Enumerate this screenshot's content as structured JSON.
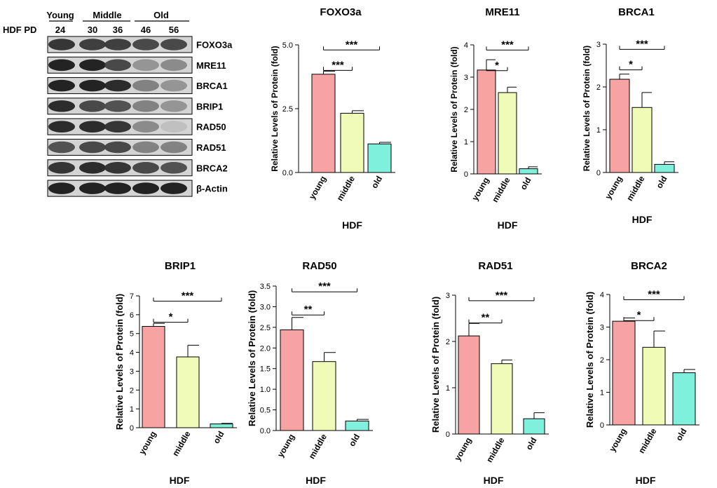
{
  "western_blot": {
    "sample_label": "HDF PD",
    "groups": [
      {
        "label": "Young",
        "lanes": [
          "24"
        ]
      },
      {
        "label": "Middle",
        "lanes": [
          "30",
          "36"
        ]
      },
      {
        "label": "Old",
        "lanes": [
          "46",
          "56"
        ]
      }
    ],
    "proteins": [
      "FOXO3a",
      "MRE11",
      "BRCA1",
      "BRIP1",
      "RAD50",
      "RAD51",
      "BRCA2",
      "β-Actin"
    ],
    "band_intensity": [
      [
        0.85,
        0.8,
        0.8,
        0.75,
        0.75
      ],
      [
        0.95,
        0.95,
        0.75,
        0.35,
        0.4
      ],
      [
        0.95,
        0.95,
        0.9,
        0.45,
        0.35
      ],
      [
        0.9,
        0.75,
        0.7,
        0.45,
        0.35
      ],
      [
        0.9,
        0.9,
        0.85,
        0.4,
        0.12
      ],
      [
        0.7,
        0.75,
        0.75,
        0.45,
        0.45
      ],
      [
        0.85,
        0.9,
        0.85,
        0.75,
        0.7
      ],
      [
        0.95,
        0.95,
        0.95,
        0.95,
        0.95
      ]
    ]
  },
  "chart_data": [
    {
      "type": "bar",
      "title": "FOXO3a",
      "xlabel": "HDF",
      "ylabel": "Relative Levels of Protein (fold)",
      "categories": [
        "young",
        "middle",
        "old"
      ],
      "values": [
        3.85,
        2.32,
        1.12
      ],
      "errors": [
        0.12,
        0.1,
        0.06
      ],
      "ylim": [
        0,
        5
      ],
      "yticks": [
        "0.0",
        "2.5",
        "5.0"
      ],
      "significance": [
        {
          "from": 0,
          "to": 1,
          "label": "***"
        },
        {
          "from": 0,
          "to": 2,
          "label": "***"
        }
      ]
    },
    {
      "type": "bar",
      "title": "MRE11",
      "xlabel": "HDF",
      "ylabel": "Relative Levels of Protein (fold)",
      "categories": [
        "young",
        "middle",
        "old"
      ],
      "values": [
        3.22,
        2.52,
        0.16
      ],
      "errors": [
        0.32,
        0.17,
        0.06
      ],
      "ylim": [
        0,
        4
      ],
      "yticks": [
        "0",
        "1",
        "2",
        "3",
        "4"
      ],
      "significance": [
        {
          "from": 0,
          "to": 1,
          "label": "*"
        },
        {
          "from": 0,
          "to": 2,
          "label": "***"
        }
      ]
    },
    {
      "type": "bar",
      "title": "BRCA1",
      "xlabel": "HDF",
      "ylabel": "Relative Levels of Protein (fold)",
      "categories": [
        "young",
        "middle",
        "old"
      ],
      "values": [
        2.18,
        1.52,
        0.19
      ],
      "errors": [
        0.12,
        0.35,
        0.06
      ],
      "ylim": [
        0,
        3
      ],
      "yticks": [
        "0",
        "1",
        "2",
        "3"
      ],
      "significance": [
        {
          "from": 0,
          "to": 1,
          "label": "*"
        },
        {
          "from": 0,
          "to": 2,
          "label": "***"
        }
      ]
    },
    {
      "type": "bar",
      "title": "BRIP1",
      "xlabel": "HDF",
      "ylabel": "Relative Levels of Protein (fold)",
      "categories": [
        "young",
        "middle",
        "old"
      ],
      "values": [
        5.38,
        3.76,
        0.2
      ],
      "errors": [
        0.16,
        0.62,
        0.03
      ],
      "ylim": [
        0,
        7
      ],
      "yticks": [
        "0",
        "1",
        "2",
        "3",
        "4",
        "5",
        "6",
        "7"
      ],
      "significance": [
        {
          "from": 0,
          "to": 1,
          "label": "*"
        },
        {
          "from": 0,
          "to": 2,
          "label": "***"
        }
      ]
    },
    {
      "type": "bar",
      "title": "RAD50",
      "xlabel": "HDF",
      "ylabel": "Relative Levels of Protein (fold)",
      "categories": [
        "young",
        "middle",
        "old"
      ],
      "values": [
        2.44,
        1.67,
        0.23
      ],
      "errors": [
        0.3,
        0.22,
        0.04
      ],
      "ylim": [
        0,
        3.5
      ],
      "yticks": [
        "0.0",
        "0.5",
        "1.0",
        "1.5",
        "2.0",
        "2.5",
        "3.0",
        "3.5"
      ],
      "significance": [
        {
          "from": 0,
          "to": 1,
          "label": "**"
        },
        {
          "from": 0,
          "to": 2,
          "label": "***"
        }
      ]
    },
    {
      "type": "bar",
      "title": "RAD51",
      "xlabel": "HDF",
      "ylabel": "Relative Levels of Protein (fold)",
      "categories": [
        "young",
        "middle",
        "old"
      ],
      "values": [
        2.12,
        1.52,
        0.33
      ],
      "errors": [
        0.27,
        0.08,
        0.13
      ],
      "ylim": [
        0,
        3
      ],
      "yticks": [
        "0",
        "1",
        "2",
        "3"
      ],
      "significance": [
        {
          "from": 0,
          "to": 1,
          "label": "**"
        },
        {
          "from": 0,
          "to": 2,
          "label": "***"
        }
      ]
    },
    {
      "type": "bar",
      "title": "BRCA2",
      "xlabel": "HDF",
      "ylabel": "Relative Levels of Protein (fold)",
      "categories": [
        "young",
        "middle",
        "old"
      ],
      "values": [
        3.18,
        2.38,
        1.6
      ],
      "errors": [
        0.1,
        0.5,
        0.1
      ],
      "ylim": [
        0,
        4
      ],
      "yticks": [
        "0",
        "1",
        "2",
        "3",
        "4"
      ],
      "significance": [
        {
          "from": 0,
          "to": 1,
          "label": "*"
        },
        {
          "from": 0,
          "to": 2,
          "label": "***"
        }
      ]
    }
  ],
  "bar_colors": [
    "#f7a3a3",
    "#f1fbb8",
    "#7ff0db"
  ]
}
